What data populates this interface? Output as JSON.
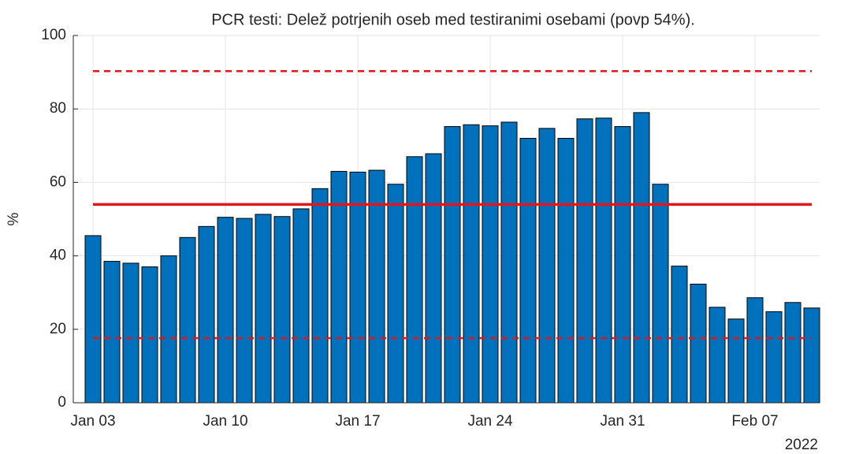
{
  "chart_data": {
    "type": "bar",
    "title": "PCR testi: Delež potrjenih oseb med testiranimi osebami (povp 54%).",
    "y_label": "%",
    "x_secondary_label": "2022",
    "categories": [
      "Jan 03",
      null,
      null,
      null,
      null,
      null,
      null,
      "Jan 10",
      null,
      null,
      null,
      null,
      null,
      null,
      "Jan 17",
      null,
      null,
      null,
      null,
      null,
      null,
      "Jan 24",
      null,
      null,
      null,
      null,
      null,
      null,
      "Jan 31",
      null,
      null,
      null,
      null,
      null,
      null,
      "Feb 07",
      null,
      null,
      null
    ],
    "values": [
      45.5,
      38.5,
      38,
      37,
      40,
      45,
      48,
      50.5,
      50.2,
      51.3,
      50.7,
      52.8,
      58.3,
      63,
      62.8,
      63.3,
      59.5,
      67,
      67.8,
      75.2,
      75.7,
      75.4,
      76.4,
      72,
      74.7,
      72,
      77.3,
      77.5,
      75.2,
      79,
      59.5,
      37.2,
      32.3,
      26,
      22.8,
      28.6,
      24.8,
      27.3,
      25.8
    ],
    "color": "#0072bd",
    "ylim": [
      0,
      100
    ],
    "yticks": [
      0,
      20,
      40,
      60,
      80,
      100
    ],
    "grid": true,
    "lines": [
      {
        "value": 54,
        "style": "solid",
        "color": "#e3161c"
      },
      {
        "value": 90.3,
        "style": "dashed",
        "color": "#e3161c"
      },
      {
        "value": 17.6,
        "style": "dashed",
        "color": "#e3161c"
      }
    ]
  }
}
